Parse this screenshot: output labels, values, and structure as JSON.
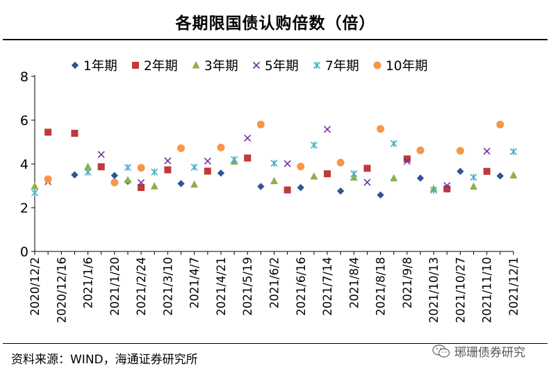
{
  "title": "各期限国债认购倍数（倍）",
  "source": "资料来源：WIND，海通证券研究所",
  "watermark": "琊珊债券研究",
  "chart_data": {
    "type": "scatter",
    "title": "各期限国债认购倍数（倍）",
    "ylim": [
      0,
      8
    ],
    "yticks": [
      0,
      2,
      4,
      6,
      8
    ],
    "x_count": 37,
    "xtick_labels": [
      {
        "i": 0,
        "label": "2020/12/2"
      },
      {
        "i": 2,
        "label": "2020/12/16"
      },
      {
        "i": 4,
        "label": "2021/1/6"
      },
      {
        "i": 6,
        "label": "2021/1/20"
      },
      {
        "i": 8,
        "label": "2021/2/24"
      },
      {
        "i": 10,
        "label": "2021/3/10"
      },
      {
        "i": 12,
        "label": "2021/4/7"
      },
      {
        "i": 14,
        "label": "2021/4/21"
      },
      {
        "i": 16,
        "label": "2021/5/19"
      },
      {
        "i": 18,
        "label": "2021/6/2"
      },
      {
        "i": 20,
        "label": "2021/6/16"
      },
      {
        "i": 22,
        "label": "2021/7/14"
      },
      {
        "i": 24,
        "label": "2021/8/4"
      },
      {
        "i": 26,
        "label": "2021/8/18"
      },
      {
        "i": 28,
        "label": "2021/9/8"
      },
      {
        "i": 30,
        "label": "2021/10/13"
      },
      {
        "i": 32,
        "label": "2021/10/27"
      },
      {
        "i": 34,
        "label": "2021/11/10"
      },
      {
        "i": 36,
        "label": "2021/12/1"
      }
    ],
    "series": [
      {
        "name": "1年期",
        "marker": "diamond",
        "color": "#2F5597",
        "points": [
          [
            3,
            3.5
          ],
          [
            6,
            3.47
          ],
          [
            7,
            3.2
          ],
          [
            11,
            3.1
          ],
          [
            14,
            3.58
          ],
          [
            17,
            2.97
          ],
          [
            20,
            2.92
          ],
          [
            23,
            2.76
          ],
          [
            26,
            2.58
          ],
          [
            29,
            3.35
          ],
          [
            32,
            3.66
          ],
          [
            35,
            3.45
          ]
        ]
      },
      {
        "name": "2年期",
        "marker": "square",
        "color": "#C0393B",
        "points": [
          [
            1,
            5.45
          ],
          [
            3,
            5.4
          ],
          [
            5,
            3.87
          ],
          [
            8,
            2.92
          ],
          [
            10,
            3.73
          ],
          [
            13,
            3.67
          ],
          [
            16,
            4.27
          ],
          [
            19,
            2.81
          ],
          [
            22,
            3.55
          ],
          [
            25,
            3.8
          ],
          [
            28,
            4.23
          ],
          [
            31,
            2.86
          ],
          [
            34,
            3.66
          ]
        ]
      },
      {
        "name": "3年期",
        "marker": "triangle",
        "color": "#8DB04A",
        "points": [
          [
            0,
            2.98
          ],
          [
            4,
            3.87
          ],
          [
            7,
            3.26
          ],
          [
            9,
            2.98
          ],
          [
            12,
            3.06
          ],
          [
            15,
            4.11
          ],
          [
            18,
            3.22
          ],
          [
            21,
            3.43
          ],
          [
            24,
            3.38
          ],
          [
            27,
            3.35
          ],
          [
            30,
            2.87
          ],
          [
            33,
            2.97
          ],
          [
            36,
            3.48
          ]
        ]
      },
      {
        "name": "5年期",
        "marker": "x",
        "color": "#7030A0",
        "points": [
          [
            1,
            3.19
          ],
          [
            5,
            4.43
          ],
          [
            8,
            3.15
          ],
          [
            10,
            4.14
          ],
          [
            13,
            4.13
          ],
          [
            16,
            5.18
          ],
          [
            19,
            4.01
          ],
          [
            22,
            5.58
          ],
          [
            25,
            3.16
          ],
          [
            28,
            4.12
          ],
          [
            31,
            3.01
          ],
          [
            34,
            4.58
          ]
        ]
      },
      {
        "name": "7年期",
        "marker": "asterisk",
        "color": "#4BACC6",
        "points": [
          [
            0,
            2.68
          ],
          [
            4,
            3.62
          ],
          [
            7,
            3.84
          ],
          [
            9,
            3.63
          ],
          [
            12,
            3.85
          ],
          [
            15,
            4.2
          ],
          [
            18,
            4.03
          ],
          [
            21,
            4.86
          ],
          [
            24,
            3.55
          ],
          [
            27,
            4.93
          ],
          [
            30,
            2.8
          ],
          [
            33,
            3.39
          ],
          [
            36,
            4.56
          ]
        ]
      },
      {
        "name": "10年期",
        "marker": "circle",
        "color": "#F79646",
        "points": [
          [
            1,
            3.3
          ],
          [
            6,
            3.15
          ],
          [
            8,
            3.82
          ],
          [
            11,
            4.72
          ],
          [
            14,
            4.75
          ],
          [
            17,
            5.8
          ],
          [
            20,
            3.88
          ],
          [
            23,
            4.06
          ],
          [
            26,
            5.6
          ],
          [
            29,
            4.62
          ],
          [
            32,
            4.6
          ],
          [
            35,
            5.8
          ]
        ]
      }
    ]
  }
}
